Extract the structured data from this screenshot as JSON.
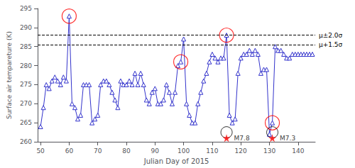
{
  "chart_data": {
    "type": "line",
    "x": [
      50,
      51,
      52,
      53,
      54,
      55,
      56,
      57,
      58,
      59,
      60,
      61,
      62,
      63,
      64,
      65,
      66,
      67,
      68,
      69,
      70,
      71,
      72,
      73,
      74,
      75,
      76,
      77,
      78,
      79,
      80,
      81,
      82,
      83,
      84,
      85,
      86,
      87,
      88,
      89,
      90,
      91,
      92,
      93,
      94,
      95,
      96,
      97,
      98,
      99,
      100,
      101,
      102,
      103,
      104,
      105,
      106,
      107,
      108,
      109,
      110,
      111,
      112,
      113,
      114,
      115,
      116,
      117,
      118,
      119,
      120,
      121,
      122,
      123,
      124,
      125,
      126,
      127,
      128,
      129,
      130,
      131,
      132,
      133,
      134,
      135,
      136,
      137,
      138,
      139,
      140,
      141,
      142,
      143,
      144,
      145
    ],
    "values": [
      264,
      269,
      275,
      274,
      276,
      277,
      276,
      275,
      277,
      276,
      293,
      270,
      269,
      266,
      267,
      275,
      275,
      275,
      265,
      266,
      267,
      275,
      276,
      276,
      275,
      273,
      271,
      269,
      276,
      275,
      275,
      276,
      275,
      278,
      275,
      278,
      275,
      271,
      270,
      273,
      274,
      270,
      270,
      271,
      275,
      273,
      270,
      273,
      280,
      281,
      287,
      270,
      267,
      265,
      265,
      270,
      273,
      276,
      278,
      281,
      283,
      282,
      281,
      282,
      282,
      288,
      267,
      265,
      266,
      278,
      282,
      283,
      283,
      284,
      283,
      284,
      283,
      278,
      279,
      279,
      262,
      265,
      285,
      284,
      284,
      283,
      282,
      282,
      283,
      283,
      283,
      283,
      283,
      283,
      283,
      283
    ],
    "color": "#3333cc",
    "marker": "triangle",
    "xlabel": "Julian Day of 2015",
    "ylabel": "Surface air tempareture (K)",
    "xlim": [
      49,
      146
    ],
    "ylim": [
      260,
      295
    ],
    "xticks": [
      50,
      60,
      70,
      80,
      90,
      100,
      110,
      120,
      130,
      140
    ],
    "yticks": [
      260,
      265,
      270,
      275,
      280,
      285,
      290,
      295
    ],
    "grid": false,
    "reference_lines": [
      {
        "value": 288.0,
        "label": "μ±2.0σ",
        "color": "#000000",
        "line_style": "dashed"
      },
      {
        "value": 285.5,
        "label": "μ+1.5σ",
        "color": "#000000",
        "line_style": "dashed"
      }
    ],
    "circled_points": {
      "x": [
        60,
        99,
        115,
        131
      ],
      "color": "#ff0000"
    },
    "circled_low": {
      "x": [
        115,
        131
      ],
      "y": [
        262.5,
        262.5
      ],
      "color": "#000000"
    },
    "events": {
      "x": [
        115,
        131
      ],
      "y": [
        261,
        261
      ],
      "labels": [
        "M7.8",
        "M7.3"
      ],
      "color": "#ff0000",
      "marker": "star"
    }
  }
}
